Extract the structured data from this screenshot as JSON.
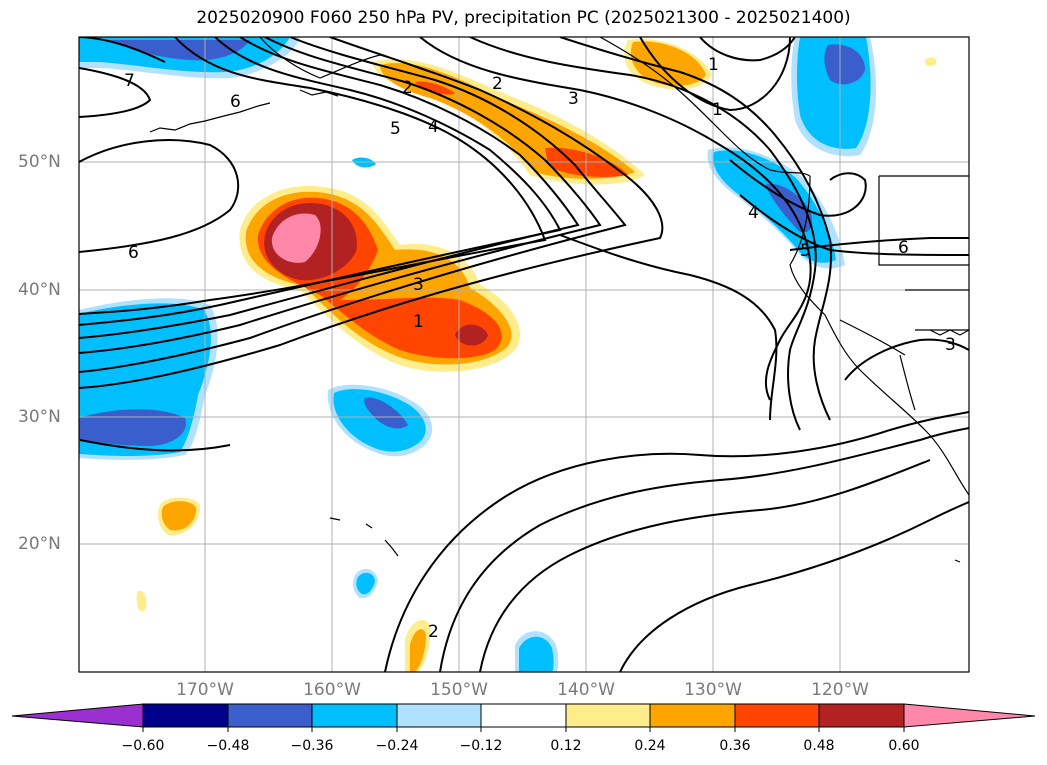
{
  "title": "2025020900 F060 250 hPa PV, precipitation PC (2025021300 - 2025021400)",
  "map": {
    "lat_labels": [
      "50°N",
      "40°N",
      "30°N",
      "20°N"
    ],
    "lon_labels": [
      "170°W",
      "160°W",
      "150°W",
      "140°W",
      "130°W",
      "120°W"
    ],
    "pv_contour_labels": [
      "7",
      "6",
      "5",
      "4",
      "2",
      "3",
      "1",
      "6",
      "3",
      "1",
      "2",
      "4",
      "5",
      "6",
      "3",
      "2",
      "1"
    ]
  },
  "colorbar": {
    "ticks": [
      "−0.60",
      "−0.48",
      "−0.36",
      "−0.24",
      "−0.12",
      "0.12",
      "0.24",
      "0.36",
      "0.48",
      "0.60"
    ],
    "colors": [
      "#9a30d0",
      "#00008b",
      "#3a5fcd",
      "#00bfff",
      "#b0e2ff",
      "#ffffff",
      "#ffec8b",
      "#ffa500",
      "#ff4500",
      "#b22222",
      "#ff88aa"
    ]
  }
}
